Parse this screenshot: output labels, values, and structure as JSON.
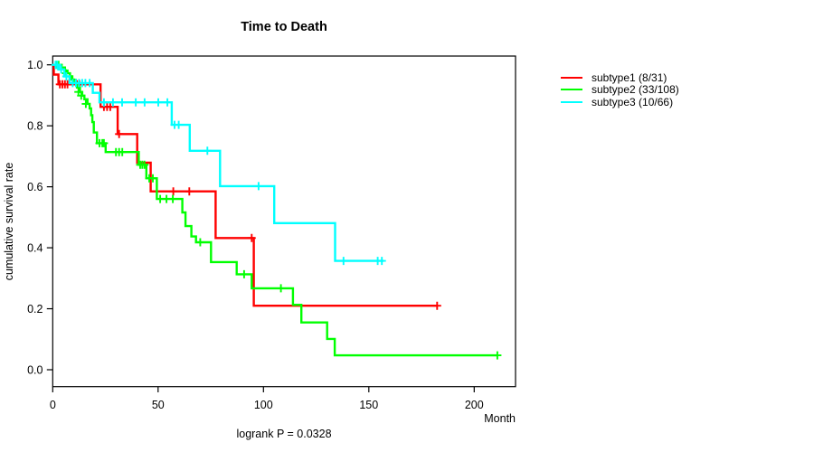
{
  "footnote": "logrank P = 0.0328",
  "chart_data": {
    "type": "km_survival_step",
    "title": "Time to Death",
    "xlabel": "Month",
    "ylabel": "cumulative survival rate",
    "xlim": [
      0,
      220
    ],
    "ylim": [
      0,
      1.04
    ],
    "x_ticks": [
      0,
      50,
      100,
      150,
      200
    ],
    "y_ticks": [
      0.0,
      0.2,
      0.4,
      0.6,
      0.8,
      1.0
    ],
    "grid": false,
    "legend_position": "right-outside",
    "annotation": "logrank P = 0.0328",
    "series": [
      {
        "name": "subtype1 (8/31)",
        "color": "#FF0000",
        "events": 8,
        "n": 31,
        "steps": [
          [
            0,
            1.0
          ],
          [
            0.5,
            0.968
          ],
          [
            2.7,
            0.936
          ],
          [
            22.7,
            0.862
          ],
          [
            30.8,
            0.773
          ],
          [
            40.1,
            0.679
          ],
          [
            46.5,
            0.585
          ],
          [
            77.3,
            0.432
          ],
          [
            95.4,
            0.21
          ]
        ],
        "end_month": 182.4,
        "censors": [
          [
            3.4,
            0.936
          ],
          [
            4.6,
            0.936
          ],
          [
            5.8,
            0.936
          ],
          [
            7,
            0.936
          ],
          [
            11.5,
            0.936
          ],
          [
            12.7,
            0.936
          ],
          [
            24.3,
            0.862
          ],
          [
            25.8,
            0.862
          ],
          [
            27.3,
            0.862
          ],
          [
            31.5,
            0.773
          ],
          [
            57.2,
            0.585
          ],
          [
            64.8,
            0.585
          ],
          [
            94.4,
            0.432
          ],
          [
            182.4,
            0.21
          ]
        ]
      },
      {
        "name": "subtype2 (33/108)",
        "color": "#00FF00",
        "events": 33,
        "n": 108,
        "steps": [
          [
            0,
            1.0
          ],
          [
            4.2,
            0.991
          ],
          [
            5.8,
            0.981
          ],
          [
            7,
            0.972
          ],
          [
            8.2,
            0.962
          ],
          [
            9,
            0.952
          ],
          [
            10,
            0.941
          ],
          [
            11.5,
            0.926
          ],
          [
            12.9,
            0.911
          ],
          [
            14,
            0.899
          ],
          [
            15,
            0.887
          ],
          [
            16.5,
            0.872
          ],
          [
            17.5,
            0.857
          ],
          [
            18.2,
            0.835
          ],
          [
            18.8,
            0.812
          ],
          [
            19.5,
            0.778
          ],
          [
            21,
            0.743
          ],
          [
            25.1,
            0.714
          ],
          [
            40.8,
            0.672
          ],
          [
            44.4,
            0.628
          ],
          [
            49.4,
            0.56
          ],
          [
            61.5,
            0.516
          ],
          [
            63,
            0.471
          ],
          [
            65.8,
            0.437
          ],
          [
            68,
            0.418
          ],
          [
            75.1,
            0.353
          ],
          [
            87.3,
            0.313
          ],
          [
            94.4,
            0.267
          ],
          [
            114,
            0.213
          ],
          [
            118,
            0.155
          ],
          [
            130.2,
            0.101
          ],
          [
            133.8,
            0.047
          ]
        ],
        "end_month": 211,
        "censors": [
          [
            1.7,
            1.0
          ],
          [
            2.8,
            1.0
          ],
          [
            6.3,
            0.972
          ],
          [
            9.4,
            0.952
          ],
          [
            12.2,
            0.911
          ],
          [
            13.5,
            0.899
          ],
          [
            15.7,
            0.872
          ],
          [
            22.2,
            0.743
          ],
          [
            23.5,
            0.743
          ],
          [
            24.3,
            0.743
          ],
          [
            30,
            0.714
          ],
          [
            31.5,
            0.714
          ],
          [
            33,
            0.714
          ],
          [
            41.5,
            0.672
          ],
          [
            42.5,
            0.672
          ],
          [
            43.5,
            0.672
          ],
          [
            45.8,
            0.628
          ],
          [
            47.5,
            0.628
          ],
          [
            51,
            0.56
          ],
          [
            54,
            0.56
          ],
          [
            57,
            0.56
          ],
          [
            70,
            0.418
          ],
          [
            90.8,
            0.313
          ],
          [
            108.3,
            0.267
          ],
          [
            211,
            0.047
          ]
        ]
      },
      {
        "name": "subtype3 (10/66)",
        "color": "#00FFFF",
        "events": 10,
        "n": 66,
        "steps": [
          [
            0,
            1.0
          ],
          [
            3,
            0.985
          ],
          [
            5.5,
            0.962
          ],
          [
            8,
            0.94
          ],
          [
            19,
            0.908
          ],
          [
            22.2,
            0.877
          ],
          [
            56.5,
            0.803
          ],
          [
            65,
            0.718
          ],
          [
            79.4,
            0.602
          ],
          [
            105.1,
            0.481
          ],
          [
            134,
            0.357
          ]
        ],
        "end_month": 157,
        "censors": [
          [
            1.3,
            1.0
          ],
          [
            2.2,
            1.0
          ],
          [
            4,
            0.985
          ],
          [
            6.5,
            0.962
          ],
          [
            9.5,
            0.94
          ],
          [
            11,
            0.94
          ],
          [
            12.5,
            0.94
          ],
          [
            14,
            0.94
          ],
          [
            15.5,
            0.94
          ],
          [
            17.5,
            0.94
          ],
          [
            24.3,
            0.877
          ],
          [
            28.6,
            0.877
          ],
          [
            32.9,
            0.877
          ],
          [
            39.4,
            0.877
          ],
          [
            43.6,
            0.877
          ],
          [
            50.1,
            0.877
          ],
          [
            54.4,
            0.877
          ],
          [
            57.8,
            0.803
          ],
          [
            59.8,
            0.803
          ],
          [
            73.4,
            0.718
          ],
          [
            97.7,
            0.602
          ],
          [
            138,
            0.357
          ],
          [
            154.2,
            0.357
          ],
          [
            156.2,
            0.357
          ]
        ]
      }
    ]
  }
}
